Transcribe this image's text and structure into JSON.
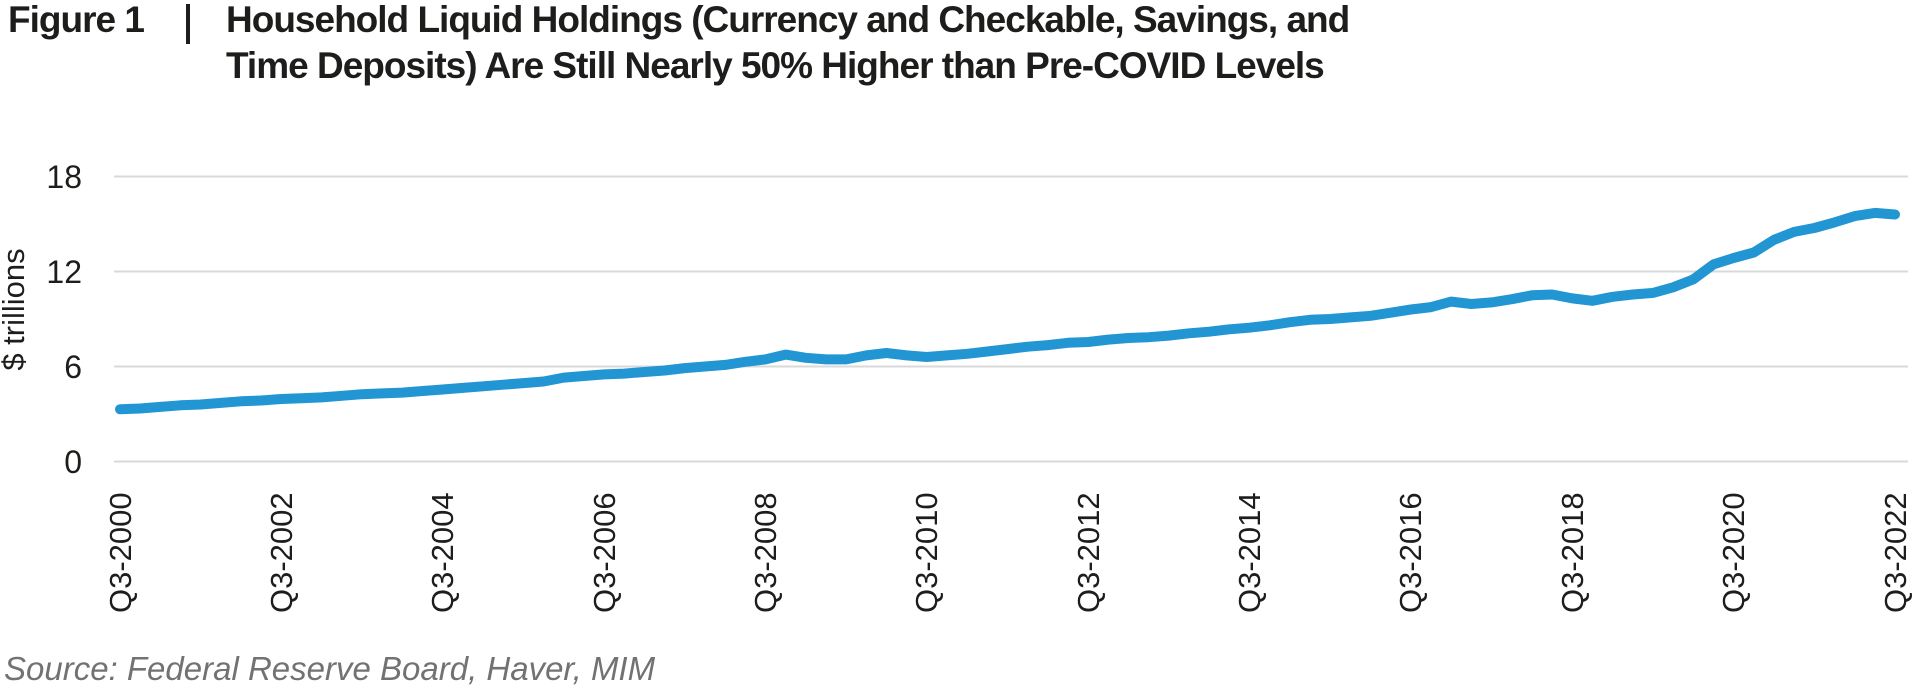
{
  "figure": {
    "label": "Figure 1",
    "title_lines": [
      "Household Liquid Holdings (Currency and Checkable, Savings, and",
      "Time Deposits) Are Still Nearly 50% Higher than Pre-COVID Levels"
    ]
  },
  "source": "Source: Federal Reserve Board, Haver, MIM",
  "colors": {
    "line": "#2196d3",
    "gridline": "#d9d9d9",
    "text": "#1d1d1b",
    "source_text": "#727272"
  },
  "chart_data": {
    "type": "line",
    "title": "Household Liquid Holdings (Currency and Checkable, Savings, and Time Deposits) Are Still Nearly 50% Higher than Pre-COVID Levels",
    "xlabel": "",
    "ylabel": "$ trillions",
    "ylim": [
      0,
      18
    ],
    "y_ticks": [
      18,
      12,
      6,
      0
    ],
    "grid": "horizontal",
    "legend_position": "none",
    "x_frequency": "quarterly",
    "x_range": [
      "Q3-2000",
      "Q3-2022"
    ],
    "x_tick_labels": [
      "Q3-2000",
      "Q3-2002",
      "Q3-2004",
      "Q3-2006",
      "Q3-2008",
      "Q3-2010",
      "Q3-2012",
      "Q3-2014",
      "Q3-2016",
      "Q3-2018",
      "Q3-2020",
      "Q3-2022"
    ],
    "series": [
      {
        "name": "Household liquid holdings ($ trillions)",
        "color": "#2196d3",
        "values": [
          3.3,
          3.35,
          3.45,
          3.55,
          3.6,
          3.7,
          3.8,
          3.85,
          3.95,
          4.0,
          4.05,
          4.15,
          4.25,
          4.3,
          4.35,
          4.45,
          4.55,
          4.65,
          4.75,
          4.85,
          4.95,
          5.05,
          5.3,
          5.4,
          5.5,
          5.55,
          5.65,
          5.75,
          5.9,
          6.0,
          6.1,
          6.3,
          6.45,
          6.75,
          6.55,
          6.45,
          6.45,
          6.7,
          6.85,
          6.7,
          6.6,
          6.7,
          6.8,
          6.95,
          7.1,
          7.25,
          7.35,
          7.5,
          7.55,
          7.7,
          7.8,
          7.85,
          7.95,
          8.1,
          8.2,
          8.35,
          8.45,
          8.6,
          8.8,
          8.95,
          9.0,
          9.1,
          9.2,
          9.4,
          9.6,
          9.75,
          10.1,
          9.95,
          10.05,
          10.25,
          10.5,
          10.55,
          10.3,
          10.15,
          10.4,
          10.55,
          10.65,
          11.0,
          11.5,
          12.45,
          12.85,
          13.2,
          14.0,
          14.5,
          14.75,
          15.1,
          15.5,
          15.7,
          15.6
        ]
      }
    ]
  }
}
